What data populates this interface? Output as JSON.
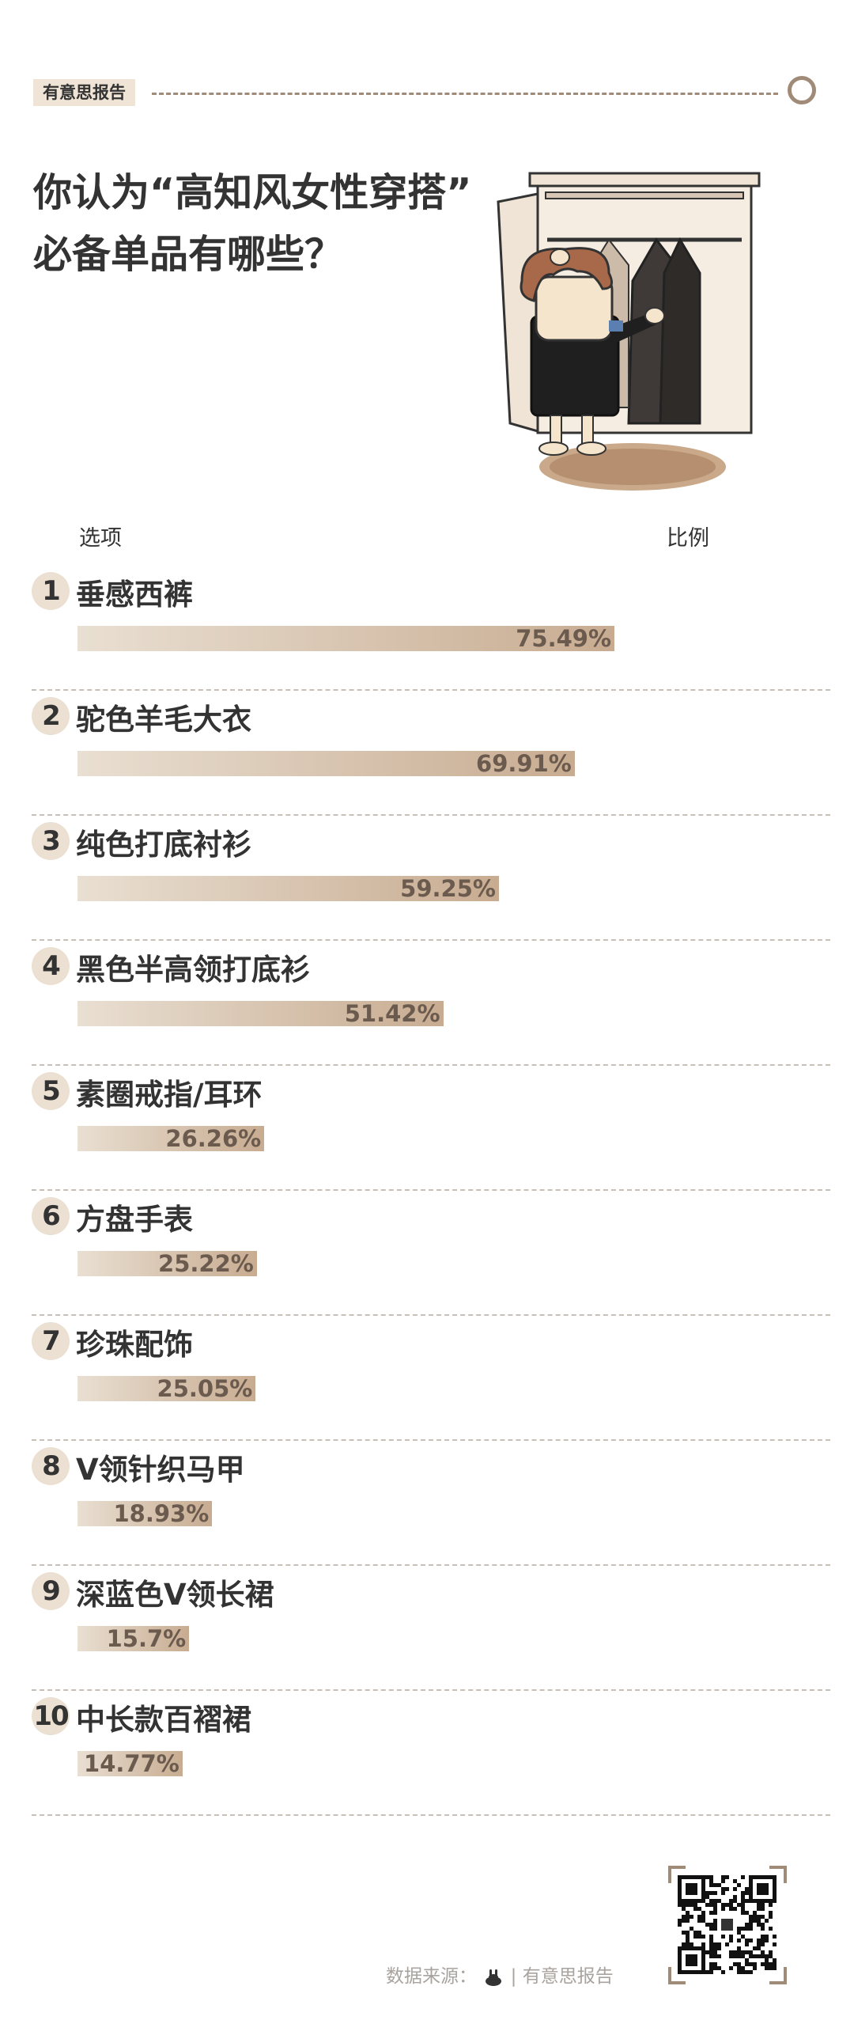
{
  "brand": "有意思报告",
  "title_lines": [
    "你认为“高知风女性穿搭”",
    "必备单品有哪些？"
  ],
  "columns": {
    "option": "选项",
    "ratio": "比例"
  },
  "chart_data": {
    "type": "bar",
    "orientation": "horizontal",
    "title": "你认为“高知风女性穿搭”必备单品有哪些？",
    "xlabel": "比例",
    "ylabel": "选项",
    "categories": [
      "垂感西裤",
      "驼色羊毛大衣",
      "纯色打底衬衫",
      "黑色半高领打底衫",
      "素圈戒指/耳环",
      "方盘手表",
      "珍珠配饰",
      "V领针织马甲",
      "深蓝色V领长裙",
      "中长款百褶裙"
    ],
    "values": [
      75.49,
      69.91,
      59.25,
      51.42,
      26.26,
      25.22,
      25.05,
      18.93,
      15.7,
      14.77
    ],
    "value_labels": [
      "75.49%",
      "69.91%",
      "59.25%",
      "51.42%",
      "26.26%",
      "25.22%",
      "25.05%",
      "18.93%",
      "15.7%",
      "14.77%"
    ],
    "ranks": [
      "1",
      "2",
      "3",
      "4",
      "5",
      "6",
      "7",
      "8",
      "9",
      "10"
    ],
    "xlim": [
      0,
      100
    ],
    "bar_color_start": "#e9dfd2",
    "bar_color_end": "#c8ac91"
  },
  "footer": {
    "source_label": "数据来源：",
    "separator": "|",
    "brand": "有意思报告"
  },
  "colors": {
    "accent": "#a08b79",
    "tag_bg": "#efe4d6",
    "text": "#333333",
    "pct_text": "#6b5a4e"
  }
}
